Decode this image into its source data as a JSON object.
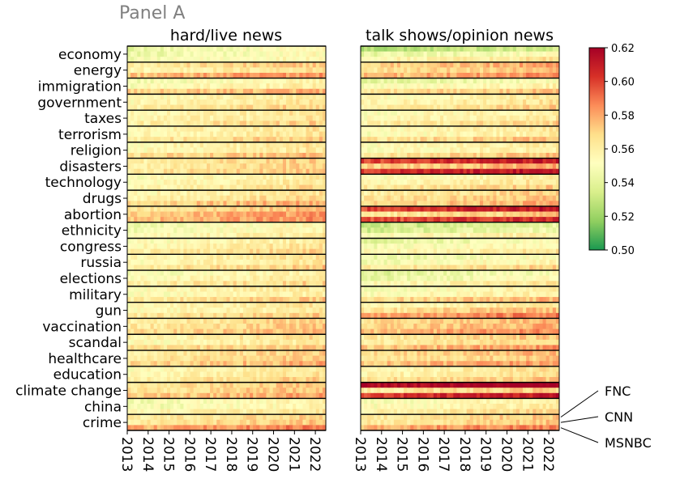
{
  "chart_data": {
    "type": "heatmap",
    "panel_label": "Panel A",
    "panels": [
      {
        "title": "hard/live news",
        "series": [
          "FNC",
          "CNN",
          "MSNBC"
        ]
      },
      {
        "title": "talk shows/opinion news",
        "series": [
          "FNC",
          "CNN",
          "MSNBC"
        ]
      }
    ],
    "topics": [
      "economy",
      "energy",
      "immigration",
      "government",
      "taxes",
      "terrorism",
      "religion",
      "disasters",
      "technology",
      "drugs",
      "abortion",
      "ethnicity",
      "congress",
      "russia",
      "elections",
      "military",
      "gun",
      "vaccination",
      "scandal",
      "healthcare",
      "education",
      "climate change",
      "china",
      "crime"
    ],
    "x_ticks": [
      "2013",
      "2014",
      "2015",
      "2016",
      "2017",
      "2018",
      "2019",
      "2020",
      "2021",
      "2022"
    ],
    "x_range": [
      2013,
      2022.5
    ],
    "colorbar": {
      "min": 0.5,
      "max": 0.62,
      "ticks": [
        "0.50",
        "0.52",
        "0.54",
        "0.56",
        "0.58",
        "0.60",
        "0.62"
      ],
      "colormap": "RdYlGn_r",
      "colors": [
        "#1a9850",
        "#91cf60",
        "#d9ef8b",
        "#ffffbf",
        "#fee08b",
        "#fc8d59",
        "#d73027",
        "#a50026"
      ]
    },
    "network_labels": [
      "FNC",
      "CNN",
      "MSNBC"
    ],
    "approx_values": {
      "hard": [
        [
          0.548,
          0.548,
          0.552
        ],
        [
          0.568,
          0.562,
          0.58
        ],
        [
          0.552,
          0.556,
          0.574
        ],
        [
          0.558,
          0.56,
          0.566
        ],
        [
          0.56,
          0.56,
          0.566
        ],
        [
          0.56,
          0.56,
          0.568
        ],
        [
          0.56,
          0.558,
          0.572
        ],
        [
          0.566,
          0.566,
          0.568
        ],
        [
          0.556,
          0.558,
          0.562
        ],
        [
          0.56,
          0.564,
          0.575
        ],
        [
          0.57,
          0.578,
          0.58
        ],
        [
          0.55,
          0.552,
          0.558
        ],
        [
          0.556,
          0.56,
          0.566
        ],
        [
          0.56,
          0.558,
          0.568
        ],
        [
          0.554,
          0.558,
          0.566
        ],
        [
          0.558,
          0.556,
          0.568
        ],
        [
          0.56,
          0.558,
          0.568
        ],
        [
          0.566,
          0.568,
          0.572
        ],
        [
          0.562,
          0.558,
          0.57
        ],
        [
          0.566,
          0.568,
          0.574
        ],
        [
          0.558,
          0.56,
          0.566
        ],
        [
          0.568,
          0.57,
          0.576
        ],
        [
          0.552,
          0.552,
          0.56
        ],
        [
          0.566,
          0.568,
          0.584
        ]
      ],
      "talk": [
        [
          0.53,
          0.546,
          0.56
        ],
        [
          0.575,
          0.57,
          0.58
        ],
        [
          0.545,
          0.554,
          0.57
        ],
        [
          0.558,
          0.56,
          0.566
        ],
        [
          0.556,
          0.558,
          0.566
        ],
        [
          0.558,
          0.556,
          0.57
        ],
        [
          0.558,
          0.556,
          0.57
        ],
        [
          0.605,
          0.574,
          0.608
        ],
        [
          0.556,
          0.56,
          0.568
        ],
        [
          0.566,
          0.57,
          0.574
        ],
        [
          0.606,
          0.568,
          0.602
        ],
        [
          0.536,
          0.54,
          0.556
        ],
        [
          0.546,
          0.552,
          0.56
        ],
        [
          0.548,
          0.552,
          0.566
        ],
        [
          0.544,
          0.548,
          0.56
        ],
        [
          0.554,
          0.556,
          0.572
        ],
        [
          0.56,
          0.57,
          0.584
        ],
        [
          0.572,
          0.574,
          0.58
        ],
        [
          0.568,
          0.566,
          0.578
        ],
        [
          0.572,
          0.568,
          0.578
        ],
        [
          0.56,
          0.562,
          0.57
        ],
        [
          0.62,
          0.566,
          0.606
        ],
        [
          0.554,
          0.556,
          0.564
        ],
        [
          0.568,
          0.568,
          0.584
        ]
      ]
    }
  }
}
